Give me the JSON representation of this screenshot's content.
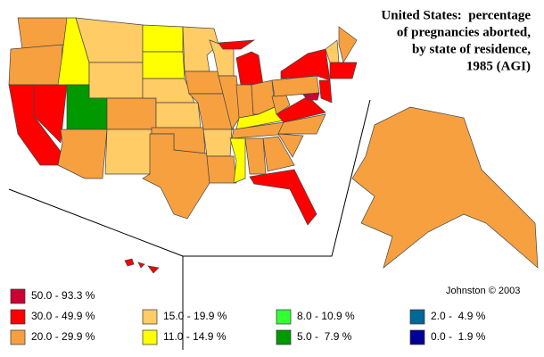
{
  "title": {
    "lines": [
      "United States:  percentage",
      "of pregnancies aborted,",
      "by state of residence,",
      "1985 (AGI)"
    ]
  },
  "credit": "Johnston © 2003",
  "legend": [
    {
      "label": "50.0 - 93.3 %",
      "color": "#cc0033"
    },
    {
      "label": "30.0 - 49.9 %",
      "color": "#ff0000"
    },
    {
      "label": "20.0 - 29.9 %",
      "color": "#f7a040"
    },
    {
      "label": "15.0 - 19.9 %",
      "color": "#ffcc66"
    },
    {
      "label": "11.0 - 14.9 %",
      "color": "#ffff00"
    },
    {
      "label": "8.0 - 10.9 %",
      "color": "#33ff33"
    },
    {
      "label": "5.0 -  7.9 %",
      "color": "#009900"
    },
    {
      "label": "2.0 -  4.9 %",
      "color": "#006699"
    },
    {
      "label": "0.0 -  1.9 %",
      "color": "#000099"
    }
  ]
}
